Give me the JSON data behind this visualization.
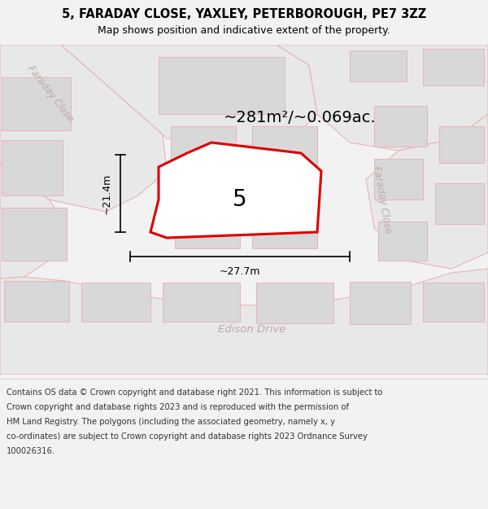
{
  "title_line1": "5, FARADAY CLOSE, YAXLEY, PETERBOROUGH, PE7 3ZZ",
  "title_line2": "Map shows position and indicative extent of the property.",
  "area_text": "~281m²/~0.069ac.",
  "label_5": "5",
  "dim_width": "~27.7m",
  "dim_height": "~21.4m",
  "street_faraday_close_left": "Faraday Close",
  "street_faraday_close_right": "Faraday Close",
  "street_edison_drive": "Edison Drive",
  "copyright_lines": [
    "Contains OS data © Crown copyright and database right 2021. This information is subject to",
    "Crown copyright and database rights 2023 and is reproduced with the permission of",
    "HM Land Registry. The polygons (including the associated geometry, namely x, y",
    "co-ordinates) are subject to Crown copyright and database rights 2023 Ordnance Survey",
    "100026316."
  ],
  "bg_color": "#f2f2f2",
  "map_bg": "#ffffff",
  "road_fill": "#e8e8e8",
  "road_stroke": "#e8b4b8",
  "plot_fill": "#ffffff",
  "plot_stroke": "#dd0000",
  "building_fill": "#d8d8d8",
  "building_stroke": "#e8b4b8",
  "street_color": "#c0a8a8",
  "title_color": "#000000",
  "dim_color": "#000000",
  "label_color": "#000000",
  "footer_color": "#333333"
}
